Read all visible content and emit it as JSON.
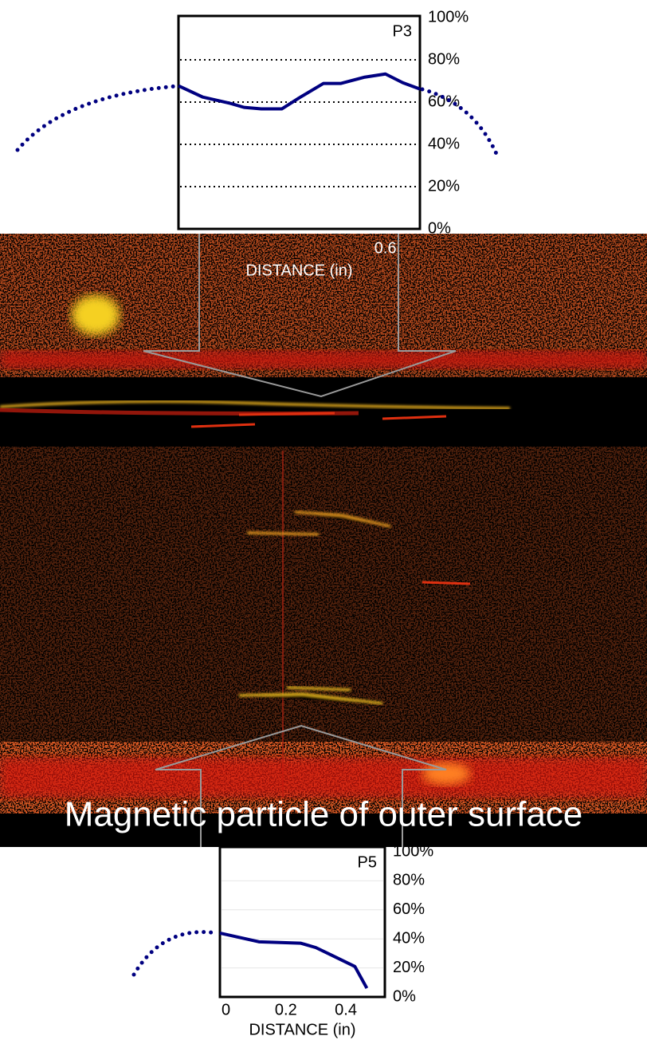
{
  "chart_data": [
    {
      "type": "line",
      "xlabel": "DISTANCE (in)",
      "x": [
        0,
        0.07,
        0.15,
        0.19,
        0.24,
        0.3,
        0.35,
        0.42,
        0.47,
        0.54,
        0.6,
        0.65,
        0.7
      ],
      "series": [
        {
          "name": "P3",
          "color": "#000080",
          "values": [
            67.7,
            62.4,
            59.4,
            57.5,
            56.8,
            56.8,
            62,
            68.8,
            68.8,
            71.8,
            73.3,
            69.2,
            66.2
          ]
        }
      ],
      "xlim": [
        0,
        0.7
      ],
      "xticks": [
        0.6
      ],
      "ylim": [
        0,
        100
      ],
      "yticks": [
        {
          "value": 0,
          "label": "0%"
        },
        {
          "value": 20,
          "label": "20%"
        },
        {
          "value": 40,
          "label": "40%"
        },
        {
          "value": 60,
          "label": "60%"
        },
        {
          "value": 80,
          "label": "80%"
        },
        {
          "value": 100,
          "label": "100%"
        }
      ],
      "grid": true
    },
    {
      "type": "line",
      "xlabel": "DISTANCE (in)",
      "x": [
        -0.02,
        0.11,
        0.25,
        0.3,
        0.35,
        0.43,
        0.47
      ],
      "series": [
        {
          "name": "P5",
          "color": "#000080",
          "values": [
            44,
            38,
            37,
            34,
            29,
            21,
            6
          ]
        }
      ],
      "xlim": [
        -0.02,
        0.53
      ],
      "xticks": [
        0,
        0.2,
        0.4
      ],
      "ylim": [
        0,
        100
      ],
      "yticks": [
        {
          "value": 0,
          "label": "0%"
        },
        {
          "value": 20,
          "label": "20%"
        },
        {
          "value": 40,
          "label": "40%"
        },
        {
          "value": 60,
          "label": "60%"
        },
        {
          "value": 80,
          "label": "80%"
        },
        {
          "value": 100,
          "label": "100%"
        }
      ],
      "grid": true
    }
  ],
  "caption": "Magnetic particle of outer surface"
}
